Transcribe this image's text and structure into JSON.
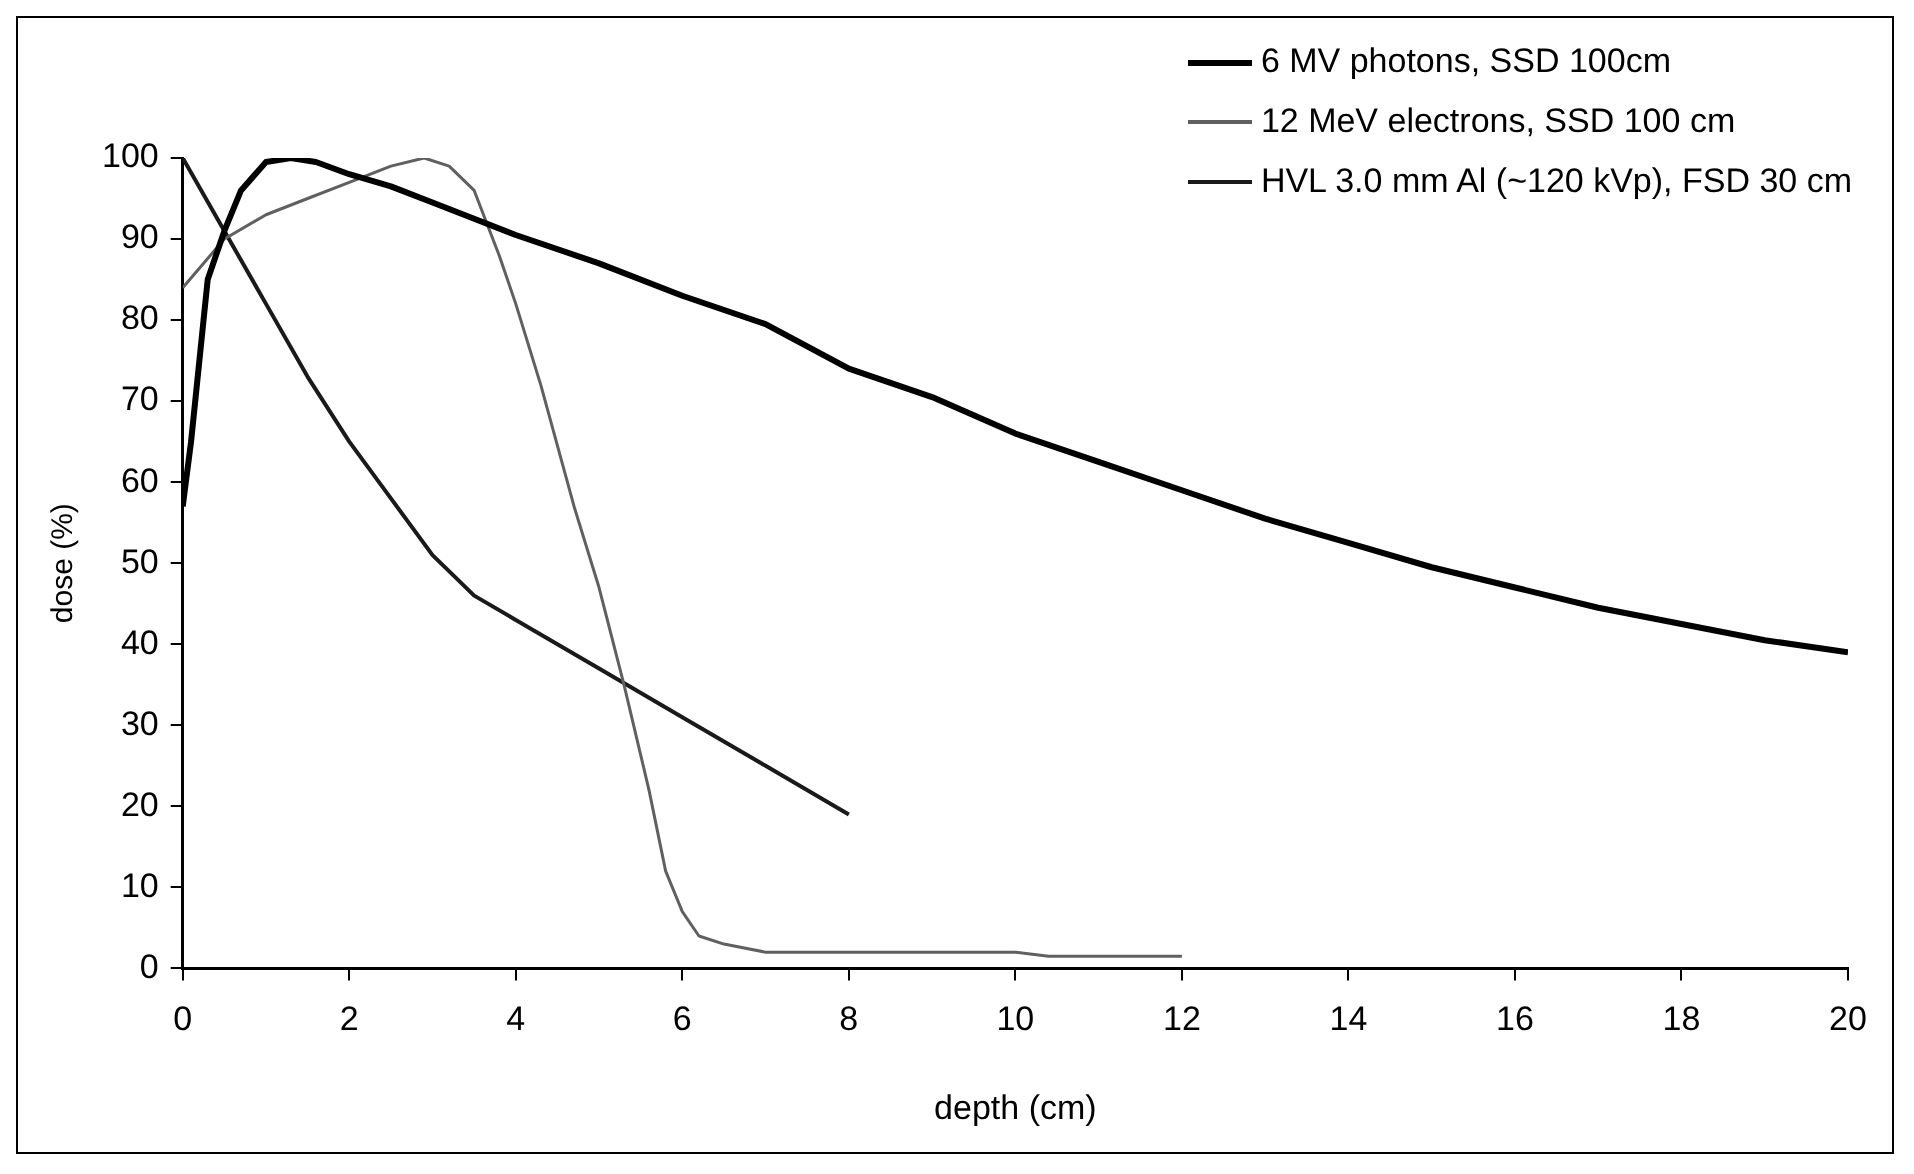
{
  "chart_data": {
    "type": "line",
    "xlabel": "depth (cm)",
    "ylabel": "dose (%)",
    "xlim": [
      0,
      20
    ],
    "xticks": [
      0,
      2,
      4,
      6,
      8,
      10,
      12,
      14,
      16,
      18,
      20
    ],
    "ylim": [
      0,
      100
    ],
    "yticks": [
      0,
      10,
      20,
      30,
      40,
      50,
      60,
      70,
      80,
      90,
      100
    ],
    "grid": false,
    "legend": "top right",
    "marker": "none",
    "line_style": "solid",
    "series": [
      {
        "name": "6 MV photons, SSD 100cm",
        "color": "#000000",
        "x": [
          0,
          0.1,
          0.2,
          0.3,
          0.5,
          0.7,
          1,
          1.3,
          1.6,
          2,
          2.5,
          3,
          3.5,
          4,
          5,
          6,
          7,
          8,
          9,
          10,
          11,
          12,
          13,
          14,
          15,
          16,
          17,
          18,
          19,
          20
        ],
        "values": [
          57,
          65,
          75,
          85,
          91,
          96,
          99.5,
          100,
          99.5,
          98,
          96.5,
          94.5,
          92.5,
          90.5,
          87,
          83,
          79.5,
          74,
          70.5,
          66,
          62.5,
          59,
          55.5,
          52.5,
          49.5,
          47,
          44.5,
          42.5,
          40.5,
          39
        ]
      },
      {
        "name": "12 MeV electrons, SSD 100 cm",
        "color": "#606060",
        "x": [
          0,
          0.5,
          1,
          1.5,
          2,
          2.5,
          2.9,
          3.2,
          3.5,
          3.8,
          4,
          4.3,
          4.7,
          5,
          5.3,
          5.6,
          5.8,
          6,
          6.2,
          6.5,
          7,
          8,
          10,
          10.4,
          12
        ],
        "values": [
          84,
          90,
          93,
          95,
          97,
          99,
          100,
          99,
          96,
          88,
          82,
          72,
          57,
          47,
          35,
          22,
          12,
          7,
          4,
          3,
          2,
          2,
          2,
          1.5,
          1.5
        ]
      },
      {
        "name": "HVL 3.0 mm Al (~120 kVp), FSD 30 cm",
        "color": "#1a1a1a",
        "x": [
          0,
          0.5,
          1,
          1.5,
          2,
          2.5,
          3,
          3.3,
          3.5,
          4,
          5,
          6,
          7,
          8
        ],
        "values": [
          100,
          91,
          82,
          73,
          65,
          58,
          51,
          48,
          46,
          43,
          37,
          31,
          25,
          19
        ]
      }
    ]
  }
}
